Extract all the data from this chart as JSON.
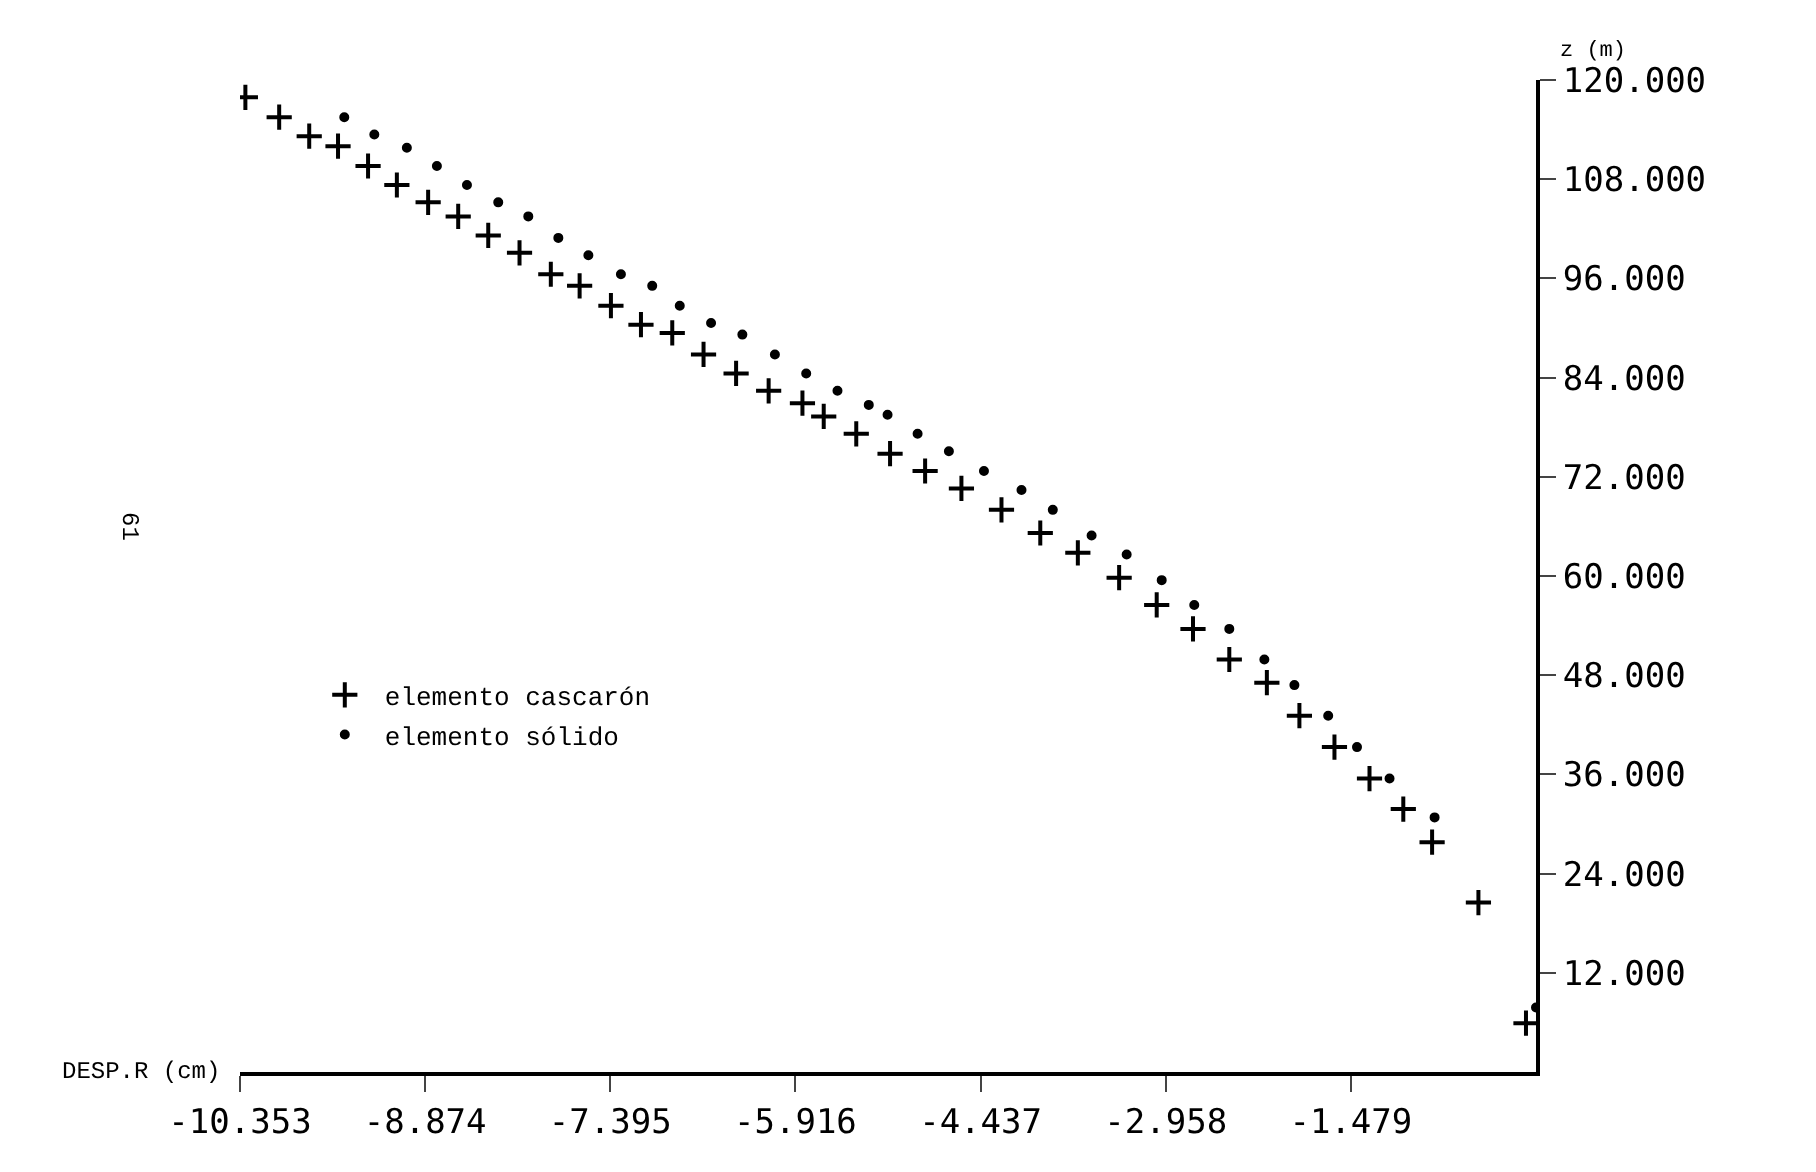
{
  "chart_data": {
    "type": "scatter",
    "xlabel": "DESP.R (cm)",
    "ylabel": "z (m)",
    "xlim": [
      -10.353,
      0
    ],
    "xticks": [
      -10.353,
      -8.874,
      -7.395,
      -5.916,
      -4.437,
      -2.958,
      -1.479
    ],
    "ylim": [
      0,
      120
    ],
    "yticks": [
      {
        "value": 12,
        "label": "12.000"
      },
      {
        "value": 24,
        "label": "24.000"
      },
      {
        "value": 36,
        "label": "36.000"
      },
      {
        "value": 48,
        "label": "48.000"
      },
      {
        "value": 60,
        "label": "60.000"
      },
      {
        "value": 72,
        "label": "72.000"
      },
      {
        "value": 84,
        "label": "84.000"
      },
      {
        "value": 96,
        "label": "96.000"
      },
      {
        "value": 108,
        "label": "108.000"
      },
      {
        "value": 120,
        "label": "120.000"
      }
    ],
    "legend": "left",
    "annotations": [
      "61"
    ],
    "series": [
      {
        "name": "elemento cascarón",
        "color": "#000000",
        "marker": "cross",
        "x": [
          -10.31,
          -10.04,
          -9.8,
          -9.57,
          -9.33,
          -9.1,
          -8.85,
          -8.61,
          -8.37,
          -8.12,
          -7.87,
          -7.64,
          -7.39,
          -7.15,
          -6.9,
          -6.65,
          -6.39,
          -6.13,
          -5.86,
          -5.69,
          -5.43,
          -5.16,
          -4.88,
          -4.59,
          -4.27,
          -3.96,
          -3.66,
          -3.33,
          -3.03,
          -2.74,
          -2.45,
          -2.15,
          -1.89,
          -1.61,
          -1.33,
          -1.06,
          -0.83,
          -0.46,
          -0.08
        ],
        "values": [
          117.9,
          115.5,
          113.2,
          112.0,
          109.6,
          107.3,
          105.2,
          103.5,
          101.2,
          99.1,
          96.5,
          95.1,
          92.7,
          90.4,
          89.4,
          86.8,
          84.5,
          82.4,
          80.9,
          79.3,
          77.2,
          74.8,
          72.7,
          70.6,
          68.0,
          65.2,
          62.8,
          59.8,
          56.5,
          53.6,
          49.9,
          47.1,
          43.1,
          39.3,
          35.5,
          31.8,
          27.8,
          20.5,
          5.9
        ]
      },
      {
        "name": "elemento sólido",
        "color": "#000000",
        "marker": "circle",
        "x": [
          -9.52,
          -9.28,
          -9.02,
          -8.78,
          -8.54,
          -8.29,
          -8.05,
          -7.81,
          -7.57,
          -7.31,
          -7.06,
          -6.84,
          -6.59,
          -6.34,
          -6.08,
          -5.83,
          -5.58,
          -5.33,
          -5.18,
          -4.94,
          -4.69,
          -4.41,
          -4.11,
          -3.86,
          -3.55,
          -3.27,
          -2.99,
          -2.73,
          -2.45,
          -2.17,
          -1.93,
          -1.66,
          -1.43,
          -1.17,
          -0.81,
          0
        ],
        "values": [
          115.5,
          113.4,
          111.8,
          109.6,
          107.3,
          105.2,
          103.5,
          100.9,
          98.8,
          96.5,
          95.1,
          92.7,
          90.6,
          89.2,
          86.8,
          84.5,
          82.4,
          80.7,
          79.5,
          77.2,
          75.1,
          72.7,
          70.4,
          68.0,
          64.9,
          62.6,
          59.5,
          56.5,
          53.6,
          49.9,
          46.8,
          43.1,
          39.3,
          35.5,
          30.8,
          7.8
        ]
      }
    ]
  }
}
